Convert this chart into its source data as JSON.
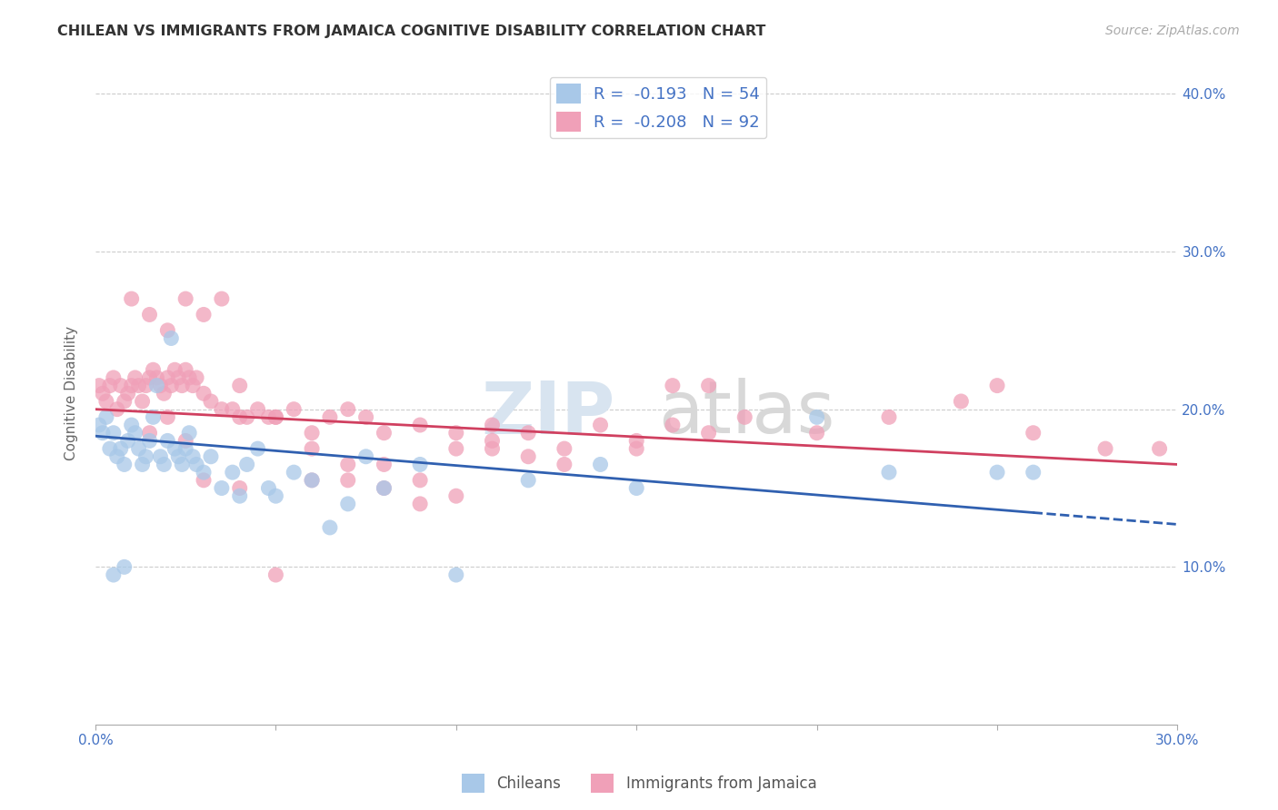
{
  "title": "CHILEAN VS IMMIGRANTS FROM JAMAICA COGNITIVE DISABILITY CORRELATION CHART",
  "source": "Source: ZipAtlas.com",
  "ylabel": "Cognitive Disability",
  "xlim": [
    0.0,
    0.3
  ],
  "ylim": [
    0.0,
    0.42
  ],
  "yticks_right": [
    0.1,
    0.2,
    0.3,
    0.4
  ],
  "background_color": "#ffffff",
  "legend_label1": "Chileans",
  "legend_label2": "Immigrants from Jamaica",
  "color_blue": "#a8c8e8",
  "color_pink": "#f0a0b8",
  "line_color_blue": "#3060b0",
  "line_color_pink": "#d04060",
  "chile_trend_x0": 0.0,
  "chile_trend_y0": 0.183,
  "chile_trend_x1": 0.3,
  "chile_trend_y1": 0.127,
  "chile_trend_dash_start": 0.26,
  "jam_trend_x0": 0.0,
  "jam_trend_y0": 0.2,
  "jam_trend_x1": 0.3,
  "jam_trend_y1": 0.165,
  "chilean_x": [
    0.001,
    0.002,
    0.003,
    0.004,
    0.005,
    0.006,
    0.007,
    0.008,
    0.009,
    0.01,
    0.011,
    0.012,
    0.013,
    0.014,
    0.015,
    0.016,
    0.017,
    0.018,
    0.019,
    0.02,
    0.021,
    0.022,
    0.023,
    0.024,
    0.025,
    0.026,
    0.027,
    0.028,
    0.03,
    0.032,
    0.035,
    0.038,
    0.04,
    0.042,
    0.045,
    0.048,
    0.05,
    0.055,
    0.06,
    0.065,
    0.07,
    0.075,
    0.08,
    0.09,
    0.1,
    0.12,
    0.14,
    0.15,
    0.2,
    0.22,
    0.25,
    0.26,
    0.005,
    0.008
  ],
  "chilean_y": [
    0.19,
    0.185,
    0.195,
    0.175,
    0.185,
    0.17,
    0.175,
    0.165,
    0.18,
    0.19,
    0.185,
    0.175,
    0.165,
    0.17,
    0.18,
    0.195,
    0.215,
    0.17,
    0.165,
    0.18,
    0.245,
    0.175,
    0.17,
    0.165,
    0.175,
    0.185,
    0.17,
    0.165,
    0.16,
    0.17,
    0.15,
    0.16,
    0.145,
    0.165,
    0.175,
    0.15,
    0.145,
    0.16,
    0.155,
    0.125,
    0.14,
    0.17,
    0.15,
    0.165,
    0.095,
    0.155,
    0.165,
    0.15,
    0.195,
    0.16,
    0.16,
    0.16,
    0.095,
    0.1
  ],
  "jamaica_x": [
    0.001,
    0.002,
    0.003,
    0.004,
    0.005,
    0.006,
    0.007,
    0.008,
    0.009,
    0.01,
    0.011,
    0.012,
    0.013,
    0.014,
    0.015,
    0.016,
    0.017,
    0.018,
    0.019,
    0.02,
    0.021,
    0.022,
    0.023,
    0.024,
    0.025,
    0.026,
    0.027,
    0.028,
    0.03,
    0.032,
    0.035,
    0.038,
    0.04,
    0.042,
    0.045,
    0.048,
    0.05,
    0.055,
    0.06,
    0.065,
    0.07,
    0.075,
    0.08,
    0.09,
    0.1,
    0.11,
    0.12,
    0.13,
    0.14,
    0.15,
    0.16,
    0.17,
    0.18,
    0.2,
    0.22,
    0.24,
    0.26,
    0.28,
    0.295,
    0.01,
    0.015,
    0.02,
    0.025,
    0.03,
    0.035,
    0.04,
    0.05,
    0.06,
    0.07,
    0.08,
    0.09,
    0.1,
    0.11,
    0.12,
    0.13,
    0.15,
    0.16,
    0.17,
    0.25,
    0.06,
    0.08,
    0.1,
    0.02,
    0.015,
    0.025,
    0.03,
    0.04,
    0.05,
    0.07,
    0.09,
    0.11
  ],
  "jamaica_y": [
    0.215,
    0.21,
    0.205,
    0.215,
    0.22,
    0.2,
    0.215,
    0.205,
    0.21,
    0.215,
    0.22,
    0.215,
    0.205,
    0.215,
    0.22,
    0.225,
    0.22,
    0.215,
    0.21,
    0.22,
    0.215,
    0.225,
    0.22,
    0.215,
    0.225,
    0.22,
    0.215,
    0.22,
    0.21,
    0.205,
    0.2,
    0.2,
    0.215,
    0.195,
    0.2,
    0.195,
    0.195,
    0.2,
    0.185,
    0.195,
    0.2,
    0.195,
    0.185,
    0.19,
    0.185,
    0.19,
    0.185,
    0.175,
    0.19,
    0.18,
    0.19,
    0.185,
    0.195,
    0.185,
    0.195,
    0.205,
    0.185,
    0.175,
    0.175,
    0.27,
    0.26,
    0.25,
    0.27,
    0.26,
    0.27,
    0.195,
    0.195,
    0.175,
    0.165,
    0.165,
    0.155,
    0.175,
    0.175,
    0.17,
    0.165,
    0.175,
    0.215,
    0.215,
    0.215,
    0.155,
    0.15,
    0.145,
    0.195,
    0.185,
    0.18,
    0.155,
    0.15,
    0.095,
    0.155,
    0.14,
    0.18
  ]
}
